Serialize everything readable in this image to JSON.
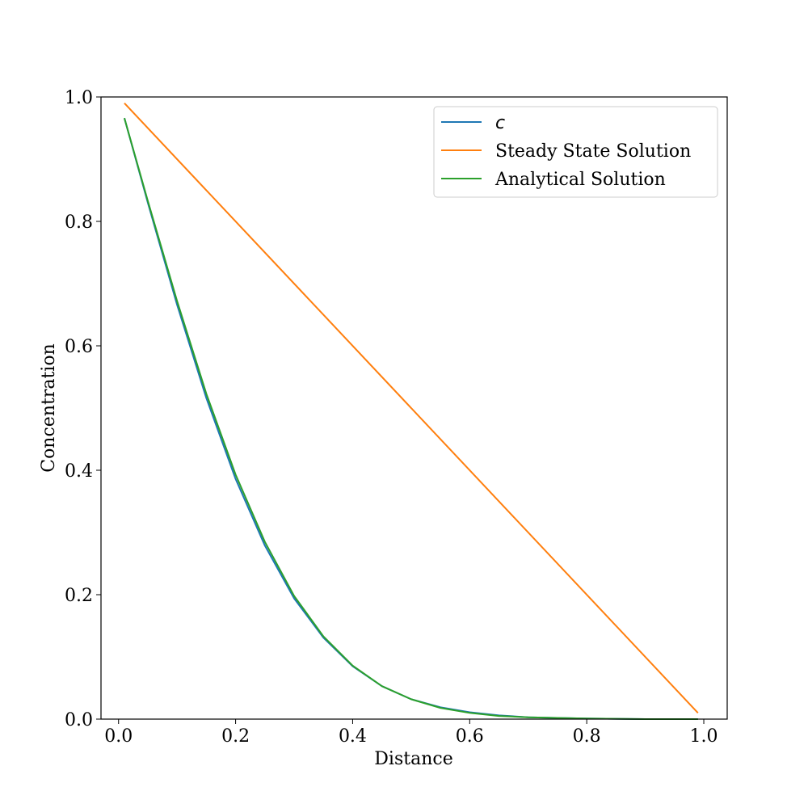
{
  "chart_data": {
    "type": "line",
    "xlabel": "Distance",
    "ylabel": "Concentration",
    "xlim": [
      -0.03,
      1.04
    ],
    "ylim": [
      0.0,
      1.0
    ],
    "xticks": [
      0.0,
      0.2,
      0.4,
      0.6,
      0.8,
      1.0
    ],
    "xtick_labels": [
      "0.0",
      "0.2",
      "0.4",
      "0.6",
      "0.8",
      "1.0"
    ],
    "yticks": [
      0.0,
      0.2,
      0.4,
      0.6,
      0.8,
      1.0
    ],
    "ytick_labels": [
      "0.0",
      "0.2",
      "0.4",
      "0.6",
      "0.8",
      "1.0"
    ],
    "grid": false,
    "legend_position": "top-right",
    "series": [
      {
        "name": "c",
        "color": "#1f77b4",
        "x": [
          0.01,
          0.05,
          0.1,
          0.15,
          0.2,
          0.25,
          0.3,
          0.35,
          0.4,
          0.45,
          0.5,
          0.55,
          0.6,
          0.65,
          0.7,
          0.8,
          0.9,
          0.99
        ],
        "y": [
          0.966,
          0.83,
          0.666,
          0.516,
          0.386,
          0.279,
          0.194,
          0.131,
          0.085,
          0.053,
          0.032,
          0.019,
          0.011,
          0.006,
          0.003,
          0.001,
          0.0,
          0.0
        ]
      },
      {
        "name": "Steady State Solution",
        "color": "#ff7f0e",
        "x": [
          0.01,
          0.99
        ],
        "y": [
          0.99,
          0.01
        ]
      },
      {
        "name": "Analytical Solution",
        "color": "#2ca02c",
        "x": [
          0.01,
          0.05,
          0.1,
          0.15,
          0.2,
          0.25,
          0.3,
          0.35,
          0.4,
          0.45,
          0.5,
          0.55,
          0.6,
          0.65,
          0.7,
          0.8,
          0.9,
          0.99
        ],
        "y": [
          0.966,
          0.833,
          0.672,
          0.523,
          0.393,
          0.285,
          0.198,
          0.133,
          0.086,
          0.053,
          0.032,
          0.018,
          0.01,
          0.005,
          0.003,
          0.001,
          0.0,
          0.0
        ]
      }
    ]
  }
}
